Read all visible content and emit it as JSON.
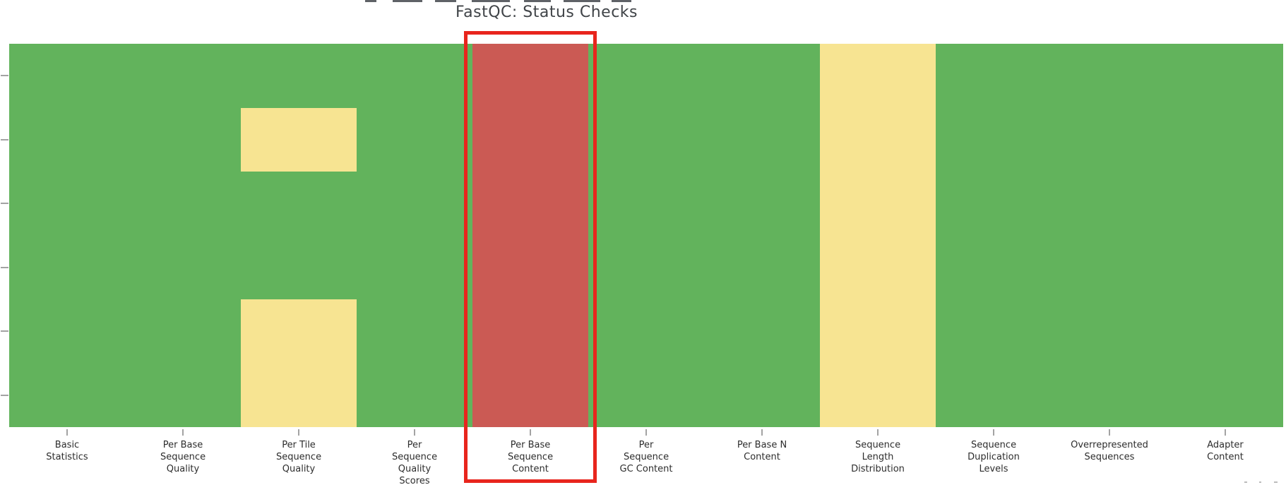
{
  "chart_data": {
    "type": "heatmap",
    "title": "FastQC: Status Checks",
    "x_categories": [
      "Basic Statistics",
      "Per Base Sequence Quality",
      "Per Tile Sequence Quality",
      "Per Sequence Quality Scores",
      "Per Base Sequence Content",
      "Per Sequence GC Content",
      "Per Base N Content",
      "Sequence Length Distribution",
      "Sequence Duplication Levels",
      "Overrepresented Sequences",
      "Adapter Content"
    ],
    "x_label_lines": [
      [
        "Basic",
        "Statistics"
      ],
      [
        "Per Base",
        "Sequence",
        "Quality"
      ],
      [
        "Per Tile",
        "Sequence",
        "Quality"
      ],
      [
        "Per",
        "Sequence",
        "Quality",
        "Scores"
      ],
      [
        "Per Base",
        "Sequence",
        "Content"
      ],
      [
        "Per",
        "Sequence",
        "GC Content"
      ],
      [
        "Per Base N",
        "Content"
      ],
      [
        "Sequence",
        "Length",
        "Distribution"
      ],
      [
        "Sequence",
        "Duplication",
        "Levels"
      ],
      [
        "Overrepresented",
        "Sequences"
      ],
      [
        "Adapter",
        "Content"
      ]
    ],
    "rows": 6,
    "row_labels_visible": false,
    "statuses": [
      [
        "pass",
        "pass",
        "pass",
        "pass",
        "fail",
        "pass",
        "pass",
        "warn",
        "pass",
        "pass",
        "pass"
      ],
      [
        "pass",
        "pass",
        "warn",
        "pass",
        "fail",
        "pass",
        "pass",
        "warn",
        "pass",
        "pass",
        "pass"
      ],
      [
        "pass",
        "pass",
        "pass",
        "pass",
        "fail",
        "pass",
        "pass",
        "warn",
        "pass",
        "pass",
        "pass"
      ],
      [
        "pass",
        "pass",
        "pass",
        "pass",
        "fail",
        "pass",
        "pass",
        "warn",
        "pass",
        "pass",
        "pass"
      ],
      [
        "pass",
        "pass",
        "warn",
        "pass",
        "fail",
        "pass",
        "pass",
        "warn",
        "pass",
        "pass",
        "pass"
      ],
      [
        "pass",
        "pass",
        "warn",
        "pass",
        "fail",
        "pass",
        "pass",
        "warn",
        "pass",
        "pass",
        "pass"
      ]
    ],
    "status_colors": {
      "pass": "#62b35c",
      "warn": "#f7e492",
      "fail": "#cb5a54"
    },
    "highlight": {
      "column": "Per Base Sequence Content",
      "color": "#e8251d"
    },
    "legend": "none",
    "grid": "off"
  },
  "style": {
    "title_color": "#404448",
    "label_color": "#2d2d2d",
    "tick_color": "#a3a3a3",
    "background": "#ffffff"
  }
}
